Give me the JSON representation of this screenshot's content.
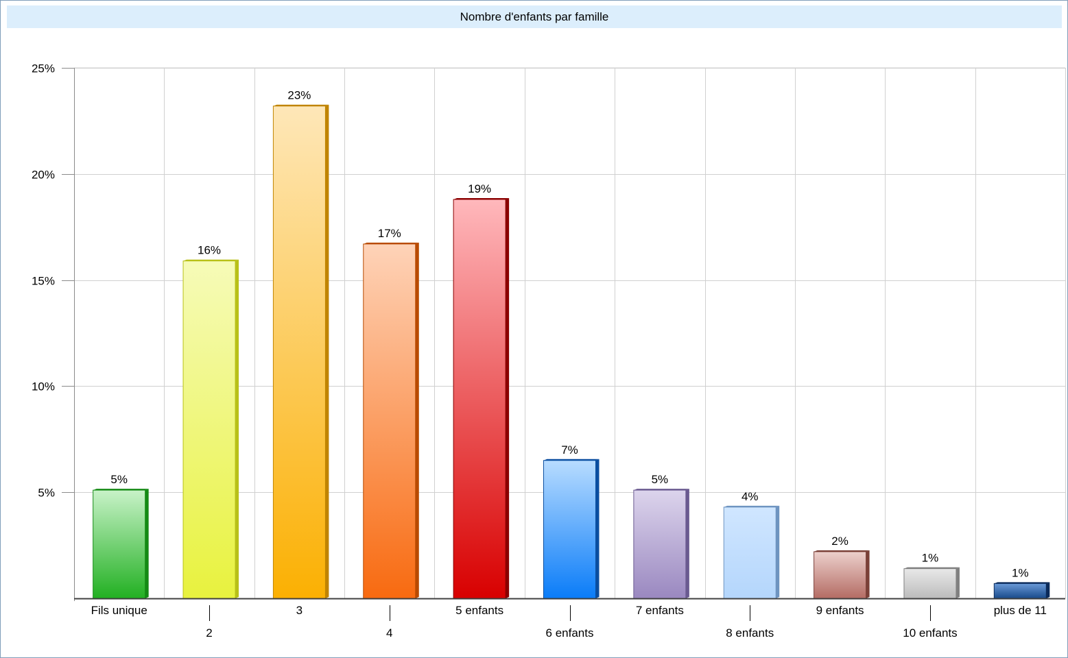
{
  "chart_data": {
    "type": "bar",
    "title": "Nombre d'enfants par famille",
    "categories": [
      "Fils unique",
      "2",
      "3",
      "4",
      "5 enfants",
      "6 enfants",
      "7 enfants",
      "8 enfants",
      "9 enfants",
      "10 enfants",
      "plus de 11"
    ],
    "values": [
      5.1,
      15.9,
      23.2,
      16.7,
      18.8,
      6.5,
      5.1,
      4.3,
      2.2,
      1.4,
      0.7
    ],
    "value_labels": [
      "5%",
      "16%",
      "23%",
      "17%",
      "19%",
      "7%",
      "5%",
      "4%",
      "2%",
      "1%",
      "1%"
    ],
    "ylim": [
      0,
      25
    ],
    "yticks": [
      5,
      10,
      15,
      20,
      25
    ],
    "ytick_labels": [
      "5%",
      "10%",
      "15%",
      "20%",
      "25%"
    ],
    "xlabel": "",
    "ylabel": "",
    "grid": true,
    "colors": [
      [
        "#c8f2c8",
        "#22b022",
        "#148a14"
      ],
      [
        "#f6fbb8",
        "#e8f23e",
        "#b8c018"
      ],
      [
        "#fee7b8",
        "#fbb002",
        "#c08400"
      ],
      [
        "#fed3b8",
        "#f86a10",
        "#b84a00"
      ],
      [
        "#ffb8bc",
        "#d80000",
        "#8a0000"
      ],
      [
        "#b8dcff",
        "#0a7cf8",
        "#0a4ea0"
      ],
      [
        "#dcd4ec",
        "#9a88c0",
        "#6a5a90"
      ],
      [
        "#d0e6ff",
        "#b4d6fc",
        "#6e94c0"
      ],
      [
        "#ecd0cc",
        "#b46c64",
        "#7a4038"
      ],
      [
        "#e8e8e8",
        "#bcbcbc",
        "#808080"
      ],
      [
        "#6a9ad8",
        "#184a8a",
        "#0a2a5a"
      ]
    ]
  }
}
